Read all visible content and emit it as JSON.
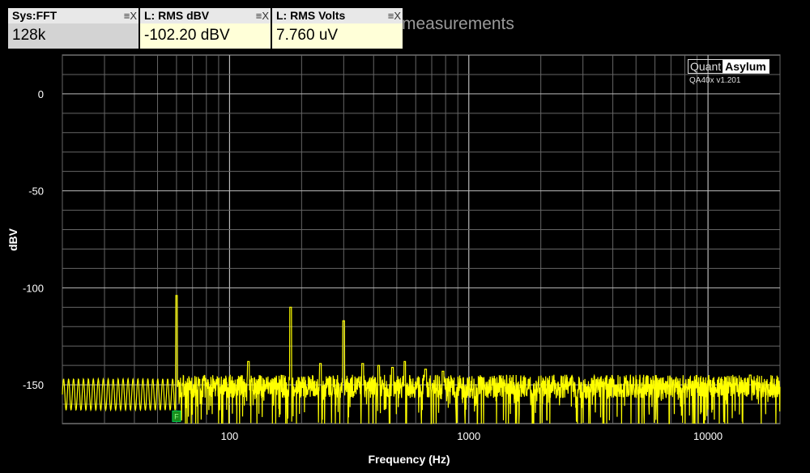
{
  "background_title": "measurements",
  "meters": [
    {
      "title": "Sys:FFT",
      "value": "128k",
      "bg": "#d3d3d3"
    },
    {
      "title": "L: RMS dBV",
      "value": "-102.20 dBV",
      "bg": "#ffffd8"
    },
    {
      "title": "L: RMS Volts",
      "value": "7.760 uV",
      "bg": "#ffffd8"
    }
  ],
  "meter_controls": "≡X",
  "logo": {
    "left": "Quant",
    "right": "Asylum",
    "version": "QA40x v1.201"
  },
  "marker_label": "F",
  "chart_data": {
    "type": "line",
    "xlabel": "Frequency (Hz)",
    "ylabel": "dBV",
    "x_scale": "log",
    "xlim": [
      20,
      20000
    ],
    "ylim": [
      -170,
      20
    ],
    "x_ticks": [
      100,
      1000,
      10000
    ],
    "x_tick_labels": [
      "100",
      "1000",
      "10000"
    ],
    "y_ticks": [
      0,
      -50,
      -100,
      -150
    ],
    "y_tick_labels": [
      "0",
      "-50",
      "-100",
      "-150"
    ],
    "grid": true,
    "line_color": "#ffff00",
    "noise_floor_dbv": -152,
    "peaks": [
      {
        "f": 60,
        "dbv": -104
      },
      {
        "f": 120,
        "dbv": -138
      },
      {
        "f": 180,
        "dbv": -110
      },
      {
        "f": 240,
        "dbv": -139
      },
      {
        "f": 300,
        "dbv": -117
      },
      {
        "f": 360,
        "dbv": -139
      },
      {
        "f": 420,
        "dbv": -140
      },
      {
        "f": 480,
        "dbv": -141
      },
      {
        "f": 540,
        "dbv": -138
      },
      {
        "f": 660,
        "dbv": -142
      },
      {
        "f": 780,
        "dbv": -143
      },
      {
        "f": 15000,
        "dbv": -145
      }
    ],
    "marker": {
      "f": 60,
      "dbv": -166
    }
  }
}
